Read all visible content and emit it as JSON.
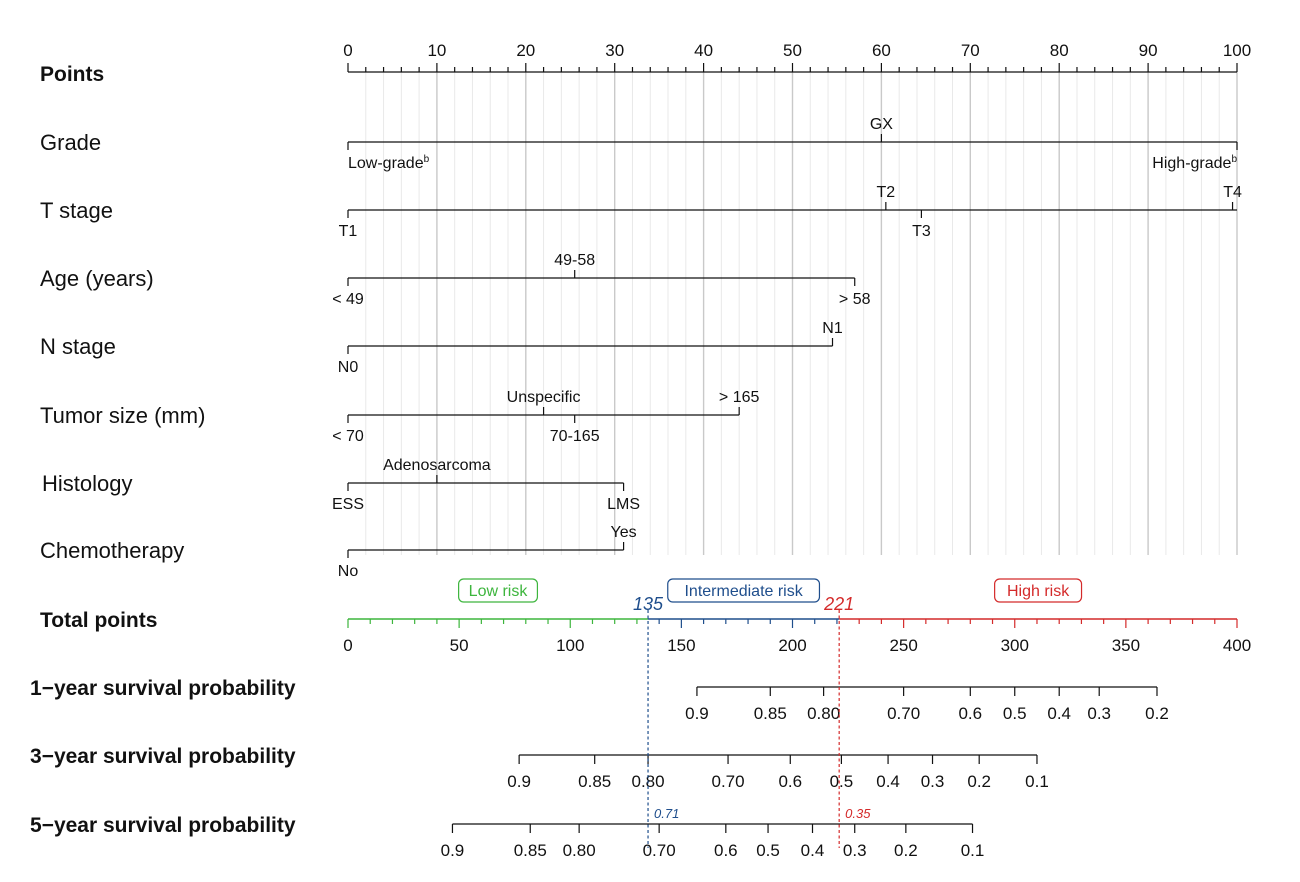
{
  "chart_data": {
    "type": "nomogram",
    "title": "",
    "points_scale": {
      "label": "Points",
      "min": 0,
      "max": 100,
      "major_step": 10,
      "minor_step": 2,
      "grid": true
    },
    "variables": [
      {
        "name": "Grade",
        "line": [
          0,
          100
        ],
        "levels": [
          {
            "label": "Low-grade",
            "sup": "b",
            "points": 0,
            "pos": "below",
            "anchor": "start"
          },
          {
            "label": "GX",
            "points": 60,
            "pos": "above"
          },
          {
            "label": "High-grade",
            "sup": "b",
            "points": 100,
            "pos": "below",
            "anchor": "end"
          }
        ]
      },
      {
        "name": "T stage",
        "line": [
          0,
          100
        ],
        "levels": [
          {
            "label": "T1",
            "points": 0,
            "pos": "below"
          },
          {
            "label": "T2",
            "points": 60.5,
            "pos": "above"
          },
          {
            "label": "T3",
            "points": 64.5,
            "pos": "below"
          },
          {
            "label": "T4",
            "points": 99.5,
            "pos": "above"
          }
        ]
      },
      {
        "name": "Age (years)",
        "line": [
          0,
          57
        ],
        "levels": [
          {
            "label": "< 49",
            "points": 0,
            "pos": "below"
          },
          {
            "label": "49-58",
            "points": 25.5,
            "pos": "above"
          },
          {
            "label": "> 58",
            "points": 57,
            "pos": "below"
          }
        ]
      },
      {
        "name": "N stage",
        "line": [
          0,
          54.5
        ],
        "levels": [
          {
            "label": "N0",
            "points": 0,
            "pos": "below"
          },
          {
            "label": "N1",
            "points": 54.5,
            "pos": "above"
          }
        ]
      },
      {
        "name": "Tumor size (mm)",
        "line": [
          0,
          44
        ],
        "levels": [
          {
            "label": "< 70",
            "points": 0,
            "pos": "below"
          },
          {
            "label": "Unspecific",
            "points": 22,
            "pos": "above"
          },
          {
            "label": "70-165",
            "points": 25.5,
            "pos": "below"
          },
          {
            "label": "> 165",
            "points": 44,
            "pos": "above"
          }
        ]
      },
      {
        "name": "Histology",
        "line": [
          0,
          31
        ],
        "levels": [
          {
            "label": "ESS",
            "points": 0,
            "pos": "below"
          },
          {
            "label": "Adenosarcoma",
            "points": 10,
            "pos": "above"
          },
          {
            "label": "LMS",
            "points": 31,
            "pos": "below"
          }
        ]
      },
      {
        "name": "Chemotherapy",
        "line": [
          0,
          31
        ],
        "levels": [
          {
            "label": "No",
            "points": 0,
            "pos": "below"
          },
          {
            "label": "Yes",
            "points": 31,
            "pos": "above"
          }
        ]
      }
    ],
    "total_points": {
      "label": "Total points",
      "min": 0,
      "max": 400,
      "major_step": 50,
      "minor_step": 10
    },
    "risk_groups": [
      {
        "name": "Low risk",
        "from": 0,
        "to": 135,
        "color": "#3db53d"
      },
      {
        "name": "Intermediate risk",
        "from": 135,
        "to": 221,
        "color": "#1f4e8c"
      },
      {
        "name": "High risk",
        "from": 221,
        "to": 400,
        "color": "#d42a2a"
      }
    ],
    "cutoffs": [
      {
        "value": 135,
        "label": "135",
        "color": "#1f4e8c",
        "annotation": "0.71"
      },
      {
        "value": 221,
        "label": "221",
        "color": "#d42a2a",
        "annotation": "0.35"
      }
    ],
    "survival_scales": [
      {
        "label": "1−year survival probability",
        "ticks": [
          {
            "label": "0.9",
            "total": 157
          },
          {
            "label": "0.85",
            "total": 190
          },
          {
            "label": "0.80",
            "total": 214
          },
          {
            "label": "0.70",
            "total": 250
          },
          {
            "label": "0.6",
            "total": 280
          },
          {
            "label": "0.5",
            "total": 300
          },
          {
            "label": "0.4",
            "total": 320
          },
          {
            "label": "0.3",
            "total": 338
          },
          {
            "label": "0.2",
            "total": 364
          }
        ]
      },
      {
        "label": "3−year survival probability",
        "ticks": [
          {
            "label": "0.9",
            "total": 77
          },
          {
            "label": "0.85",
            "total": 111
          },
          {
            "label": "0.80",
            "total": 135
          },
          {
            "label": "0.70",
            "total": 171
          },
          {
            "label": "0.6",
            "total": 199
          },
          {
            "label": "0.5",
            "total": 222
          },
          {
            "label": "0.4",
            "total": 243
          },
          {
            "label": "0.3",
            "total": 263
          },
          {
            "label": "0.2",
            "total": 284
          },
          {
            "label": "0.1",
            "total": 310
          }
        ]
      },
      {
        "label": "5−year survival probability",
        "ticks": [
          {
            "label": "0.9",
            "total": 47
          },
          {
            "label": "0.85",
            "total": 82
          },
          {
            "label": "0.80",
            "total": 104
          },
          {
            "label": "0.70",
            "total": 140
          },
          {
            "label": "0.6",
            "total": 170
          },
          {
            "label": "0.5",
            "total": 189
          },
          {
            "label": "0.4",
            "total": 209
          },
          {
            "label": "0.3",
            "total": 228
          },
          {
            "label": "0.2",
            "total": 251
          },
          {
            "label": "0.1",
            "total": 281
          }
        ]
      }
    ]
  }
}
